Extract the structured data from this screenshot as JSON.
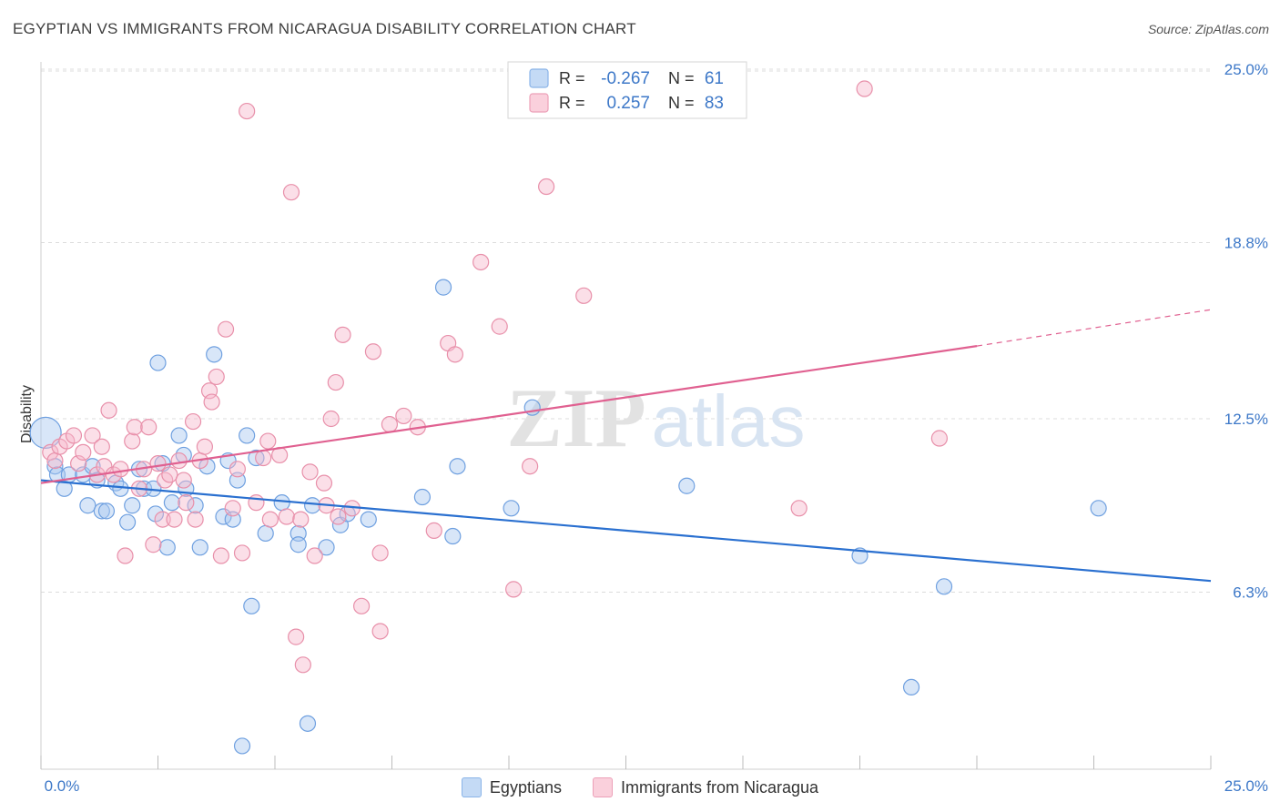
{
  "title": "EGYPTIAN VS IMMIGRANTS FROM NICARAGUA DISABILITY CORRELATION CHART",
  "source": "Source: ZipAtlas.com",
  "watermark": {
    "part1": "ZIP",
    "part2": "atlas"
  },
  "colors": {
    "blue_fill": "#a8c8f0",
    "blue_stroke": "#6fa0e0",
    "blue_line": "#2a70d0",
    "pink_fill": "#f6b8cc",
    "pink_stroke": "#e890aa",
    "pink_line": "#e06090",
    "axis_label": "#3d78c8",
    "grid": "#dcdcdc"
  },
  "chart_data": {
    "type": "scatter",
    "ylabel": "Disability",
    "xlim": [
      0,
      25
    ],
    "ylim": [
      0,
      25.6
    ],
    "x_tick_labels": [
      "0.0%",
      "25.0%"
    ],
    "y_ticks": [
      6.3,
      12.5,
      18.8,
      25.0
    ],
    "y_tick_labels": [
      "6.3%",
      "12.5%",
      "18.8%",
      "25.0%"
    ],
    "grid": "horizontal dashed",
    "legend_top": {
      "rows": [
        {
          "r_label": "R =",
          "r_value": "-0.267",
          "n_label": "N =",
          "n_value": "61"
        },
        {
          "r_label": "R =",
          "r_value": "0.257",
          "n_label": "N =",
          "n_value": "83"
        }
      ]
    },
    "series": [
      {
        "name": "Egyptians",
        "color": "#a8c8f0",
        "trend": {
          "x": [
            0,
            25
          ],
          "y": [
            10.3,
            6.7
          ]
        },
        "points": [
          [
            0.1,
            12.0
          ],
          [
            0.3,
            10.8
          ],
          [
            0.35,
            10.5
          ],
          [
            0.5,
            10.0
          ],
          [
            0.6,
            10.5
          ],
          [
            0.9,
            10.5
          ],
          [
            1.0,
            9.4
          ],
          [
            1.1,
            10.8
          ],
          [
            1.2,
            10.3
          ],
          [
            1.3,
            9.2
          ],
          [
            1.4,
            9.2
          ],
          [
            1.6,
            10.2
          ],
          [
            1.7,
            10.0
          ],
          [
            1.85,
            8.8
          ],
          [
            1.95,
            9.4
          ],
          [
            2.1,
            10.7
          ],
          [
            2.2,
            10.0
          ],
          [
            2.4,
            10.0
          ],
          [
            2.45,
            9.1
          ],
          [
            2.5,
            14.5
          ],
          [
            2.6,
            10.9
          ],
          [
            2.7,
            7.9
          ],
          [
            2.8,
            9.5
          ],
          [
            2.95,
            11.9
          ],
          [
            3.05,
            11.2
          ],
          [
            3.1,
            10.0
          ],
          [
            3.3,
            9.4
          ],
          [
            3.4,
            7.9
          ],
          [
            3.55,
            10.8
          ],
          [
            3.7,
            14.8
          ],
          [
            3.9,
            9.0
          ],
          [
            4.0,
            11.0
          ],
          [
            4.1,
            8.9
          ],
          [
            4.2,
            10.3
          ],
          [
            4.3,
            0.8
          ],
          [
            4.4,
            11.9
          ],
          [
            4.5,
            5.8
          ],
          [
            4.6,
            11.1
          ],
          [
            4.8,
            8.4
          ],
          [
            5.15,
            9.5
          ],
          [
            5.5,
            8.4
          ],
          [
            5.5,
            8.0
          ],
          [
            5.7,
            1.6
          ],
          [
            5.8,
            9.4
          ],
          [
            6.1,
            7.9
          ],
          [
            6.4,
            8.7
          ],
          [
            6.55,
            9.1
          ],
          [
            7.0,
            8.9
          ],
          [
            8.15,
            9.7
          ],
          [
            8.6,
            17.2
          ],
          [
            8.8,
            8.3
          ],
          [
            8.9,
            10.8
          ],
          [
            10.05,
            9.3
          ],
          [
            10.5,
            12.9
          ],
          [
            13.8,
            10.1
          ],
          [
            17.5,
            7.6
          ],
          [
            18.6,
            2.9
          ],
          [
            19.3,
            6.5
          ],
          [
            22.6,
            9.3
          ]
        ]
      },
      {
        "name": "Immigrants from Nicaragua",
        "color": "#f6b8cc",
        "trend": {
          "x": [
            0,
            20
          ],
          "y": [
            10.2,
            15.1
          ]
        },
        "trend_dashed": {
          "x": [
            20,
            25
          ],
          "y": [
            15.1,
            16.4
          ]
        },
        "points": [
          [
            0.2,
            11.3
          ],
          [
            0.3,
            11.0
          ],
          [
            0.4,
            11.5
          ],
          [
            0.55,
            11.7
          ],
          [
            0.7,
            11.9
          ],
          [
            0.8,
            10.9
          ],
          [
            0.9,
            11.3
          ],
          [
            1.1,
            11.9
          ],
          [
            1.2,
            10.5
          ],
          [
            1.3,
            11.5
          ],
          [
            1.35,
            10.8
          ],
          [
            1.45,
            12.8
          ],
          [
            1.55,
            10.5
          ],
          [
            1.7,
            10.7
          ],
          [
            1.8,
            7.6
          ],
          [
            1.95,
            11.7
          ],
          [
            2.0,
            12.2
          ],
          [
            2.1,
            10.0
          ],
          [
            2.2,
            10.7
          ],
          [
            2.3,
            12.2
          ],
          [
            2.4,
            8.0
          ],
          [
            2.5,
            10.9
          ],
          [
            2.6,
            8.9
          ],
          [
            2.65,
            10.3
          ],
          [
            2.75,
            10.5
          ],
          [
            2.85,
            8.9
          ],
          [
            2.95,
            11.0
          ],
          [
            3.05,
            10.3
          ],
          [
            3.1,
            9.5
          ],
          [
            3.25,
            12.4
          ],
          [
            3.3,
            8.9
          ],
          [
            3.4,
            11.0
          ],
          [
            3.5,
            11.5
          ],
          [
            3.6,
            13.5
          ],
          [
            3.65,
            13.1
          ],
          [
            3.75,
            14.0
          ],
          [
            3.85,
            7.6
          ],
          [
            3.95,
            15.7
          ],
          [
            4.1,
            9.3
          ],
          [
            4.2,
            10.7
          ],
          [
            4.3,
            7.7
          ],
          [
            4.4,
            23.5
          ],
          [
            4.6,
            9.5
          ],
          [
            4.75,
            11.1
          ],
          [
            4.85,
            11.7
          ],
          [
            4.9,
            8.9
          ],
          [
            5.1,
            11.2
          ],
          [
            5.25,
            9.0
          ],
          [
            5.35,
            20.6
          ],
          [
            5.45,
            4.7
          ],
          [
            5.55,
            8.9
          ],
          [
            5.6,
            3.7
          ],
          [
            5.75,
            10.6
          ],
          [
            5.85,
            7.6
          ],
          [
            6.05,
            10.2
          ],
          [
            6.1,
            9.4
          ],
          [
            6.2,
            12.5
          ],
          [
            6.3,
            13.8
          ],
          [
            6.35,
            9.0
          ],
          [
            6.45,
            15.5
          ],
          [
            6.65,
            9.3
          ],
          [
            6.85,
            5.8
          ],
          [
            7.1,
            14.9
          ],
          [
            7.25,
            7.7
          ],
          [
            7.25,
            4.9
          ],
          [
            7.45,
            12.3
          ],
          [
            7.75,
            12.6
          ],
          [
            8.05,
            12.2
          ],
          [
            8.4,
            8.5
          ],
          [
            8.7,
            15.2
          ],
          [
            8.85,
            14.8
          ],
          [
            9.4,
            18.1
          ],
          [
            9.8,
            15.8
          ],
          [
            10.1,
            6.4
          ],
          [
            10.45,
            10.8
          ],
          [
            10.8,
            20.8
          ],
          [
            11.6,
            16.9
          ],
          [
            16.2,
            9.3
          ],
          [
            17.6,
            24.3
          ],
          [
            19.2,
            11.8
          ]
        ]
      }
    ]
  },
  "legend_bottom": [
    {
      "label": "Egyptians",
      "color": "#a8c8f0"
    },
    {
      "label": "Immigrants from Nicaragua",
      "color": "#f6b8cc"
    }
  ]
}
